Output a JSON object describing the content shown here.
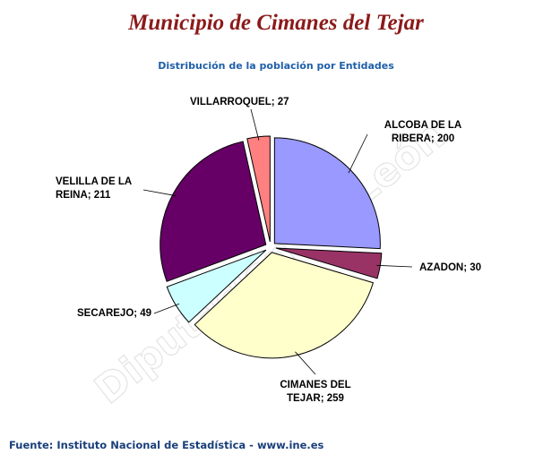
{
  "header": {
    "title": "Municipio de Cimanes del Tejar",
    "subtitle": "Distribución de la población por Entidades"
  },
  "footer": {
    "source": "Fuente: Instituto Nacional de Estadística - www.ine.es"
  },
  "watermark": "Diputación de León",
  "chart_data": {
    "type": "pie",
    "title": "Distribución de la población por Entidades",
    "slices": [
      {
        "label_lines": [
          "ALCOBA DE LA",
          "RIBERA; 200"
        ],
        "name": "ALCOBA DE LA RIBERA",
        "value": 200,
        "color": "#9999ff"
      },
      {
        "label_lines": [
          "AZADON; 30"
        ],
        "name": "AZADON",
        "value": 30,
        "color": "#993366"
      },
      {
        "label_lines": [
          "CIMANES DEL",
          "TEJAR; 259"
        ],
        "name": "CIMANES DEL TEJAR",
        "value": 259,
        "color": "#ffffcc"
      },
      {
        "label_lines": [
          "SECAREJO; 49"
        ],
        "name": "SECAREJO",
        "value": 49,
        "color": "#ccffff"
      },
      {
        "label_lines": [
          "VELILLA DE LA",
          "REINA; 211"
        ],
        "name": "VELILLA DE LA REINA",
        "value": 211,
        "color": "#660066"
      },
      {
        "label_lines": [
          "VILLARROQUEL; 27"
        ],
        "name": "VILLARROQUEL",
        "value": 27,
        "color": "#ff8080"
      }
    ]
  }
}
